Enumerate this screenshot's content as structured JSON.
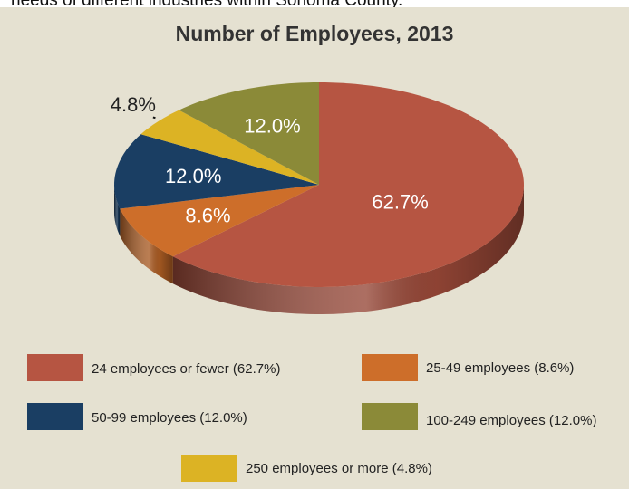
{
  "page": {
    "top_text": "needs of different industries within Sonoma County."
  },
  "chart_data": {
    "type": "pie",
    "title": "Number of Employees, 2013",
    "slices": [
      {
        "label": "24 employees or fewer (62.7%)",
        "value": 62.7,
        "display": "62.7%",
        "color": "#b65542"
      },
      {
        "label": "25-49 employees (8.6%)",
        "value": 8.6,
        "display": "8.6%",
        "color": "#cd6e2a"
      },
      {
        "label": "50-99 employees (12.0%)",
        "value": 12.0,
        "display": "12.0%",
        "color": "#1a3e63"
      },
      {
        "label": "250 employees or more (4.8%)",
        "value": 4.8,
        "display": "4.8%",
        "color": "#dcb324"
      },
      {
        "label": "100-249 employees (12.0%)",
        "value": 12.0,
        "display": "12.0%",
        "color": "#8b8a38"
      }
    ],
    "legend_order": [
      0,
      1,
      2,
      4,
      3
    ],
    "legend_position": "bottom",
    "style": "3d"
  }
}
